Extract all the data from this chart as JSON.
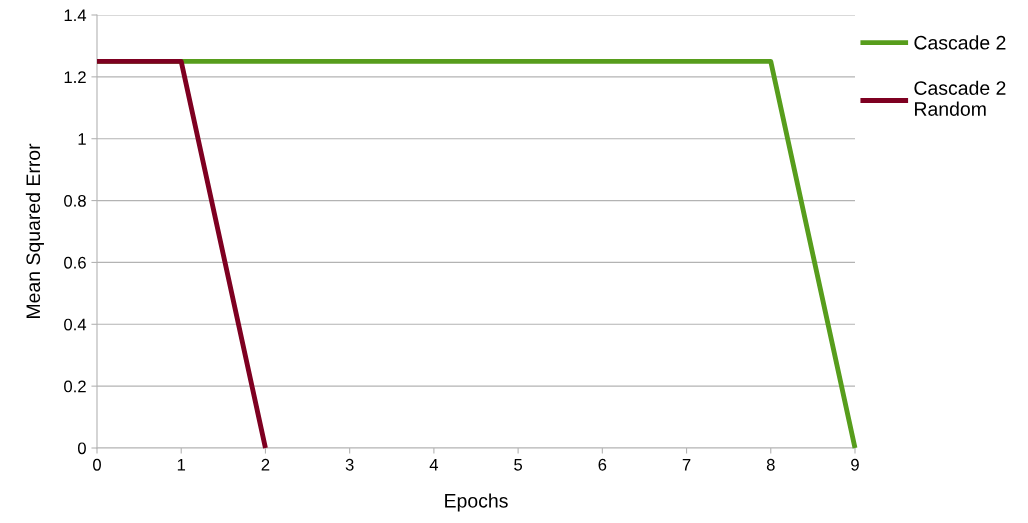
{
  "chart_data": {
    "type": "line",
    "xlabel": "Epochs",
    "ylabel": "Mean Squared Error",
    "x": [
      0,
      1,
      2,
      3,
      4,
      5,
      6,
      7,
      8,
      9
    ],
    "series": [
      {
        "name": "Cascade 2",
        "color": "#579d1c",
        "values": [
          1.25,
          1.25,
          1.25,
          1.25,
          1.25,
          1.25,
          1.25,
          1.25,
          1.25,
          0
        ]
      },
      {
        "name": "Cascade 2\nRandom",
        "color": "#7e0021",
        "x": [
          0,
          1,
          2
        ],
        "values": [
          1.25,
          1.25,
          0
        ]
      }
    ],
    "xlim": [
      0,
      9
    ],
    "xticks": [
      0,
      1,
      2,
      3,
      4,
      5,
      6,
      7,
      8,
      9
    ],
    "ylim": [
      0,
      1.4
    ],
    "yticks": [
      0,
      0.2,
      0.4,
      0.6,
      0.8,
      1,
      1.2,
      1.4
    ],
    "grid": "y",
    "legend": "right",
    "marker": "none",
    "line_style": "solid"
  }
}
